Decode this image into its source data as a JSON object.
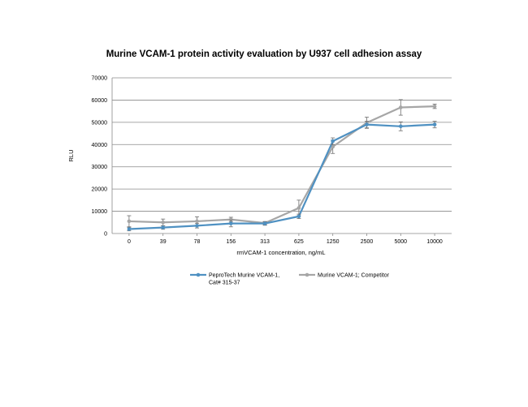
{
  "chart_data": {
    "type": "line",
    "title": "Murine VCAM-1 protein activity evaluation by U937 cell adhesion assay",
    "xlabel": "rmVCAM-1 concentration, ng/mL",
    "ylabel": "RLU",
    "categories": [
      "0",
      "39",
      "78",
      "156",
      "313",
      "625",
      "1250",
      "2500",
      "5000",
      "10000"
    ],
    "ylim": [
      0,
      70000
    ],
    "yticks": [
      0,
      10000,
      20000,
      30000,
      40000,
      50000,
      60000,
      70000
    ],
    "grid": true,
    "legend_position": "bottom",
    "series": [
      {
        "name": "PeproTech Murine VCAM-1, Cat# 315-37",
        "name_lines": [
          "PeproTech Murine VCAM-1,",
          "Cat# 315-37"
        ],
        "color": "#4f91c2",
        "values": [
          2000,
          2700,
          3500,
          4500,
          4500,
          7700,
          41500,
          49000,
          48200,
          49000
        ],
        "errors": [
          800,
          800,
          1000,
          1500,
          800,
          1000,
          1500,
          1500,
          2000,
          1500
        ]
      },
      {
        "name": "Murine VCAM-1; Competitor",
        "name_lines": [
          "Murine VCAM-1; Competitor"
        ],
        "color": "#a6a6a6",
        "values": [
          5500,
          5000,
          5500,
          6300,
          4700,
          11500,
          39000,
          49800,
          56700,
          57200
        ],
        "errors": [
          2500,
          1500,
          2000,
          1000,
          700,
          3500,
          3000,
          2500,
          3500,
          1000
        ]
      }
    ]
  }
}
